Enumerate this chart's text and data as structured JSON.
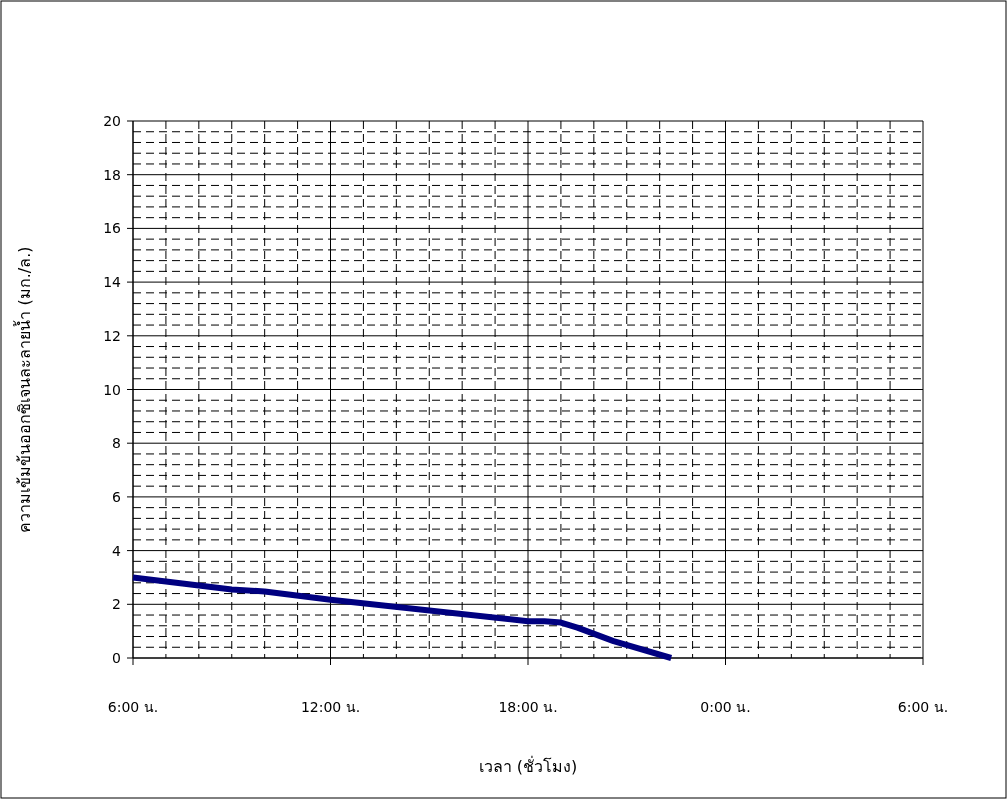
{
  "chart_data": {
    "type": "line",
    "xlabel": "เวลา (ชั่วโมง)",
    "ylabel": "ความเข้มข้นออกซิเจนละลายน้ำ (มก./ล.)",
    "x": [
      "2000-01-01T06:00",
      "2000-01-01T09:00",
      "2000-01-01T10:00",
      "2000-01-01T12:00",
      "2000-01-01T18:00",
      "2000-01-01T18:30",
      "2000-01-01T19:00",
      "2000-01-01T19:30",
      "2000-01-01T20:36",
      "2000-01-01T22:21"
    ],
    "series": [
      {
        "color": "#000080",
        "values": [
          3.0,
          2.55,
          2.48,
          2.17,
          1.37,
          1.37,
          1.32,
          1.13,
          0.63,
          0
        ]
      }
    ],
    "xlim": [
      "2000-01-01T06:00",
      "2000-01-02T06:00"
    ],
    "xticks": [
      {
        "value": "2000-01-01T06:00",
        "label": "6:00 น."
      },
      {
        "value": "2000-01-01T12:00",
        "label": "12:00 น."
      },
      {
        "value": "2000-01-01T18:00",
        "label": "18:00 น."
      },
      {
        "value": "2000-01-02T00:00",
        "label": "0:00 น."
      },
      {
        "value": "2000-01-02T06:00",
        "label": "6:00 น."
      }
    ],
    "ylim": [
      0,
      20
    ],
    "yticks": [
      0,
      2,
      4,
      6,
      8,
      10,
      12,
      14,
      16,
      18,
      20
    ],
    "grid": true,
    "marker": "none",
    "line_style": "solid"
  }
}
